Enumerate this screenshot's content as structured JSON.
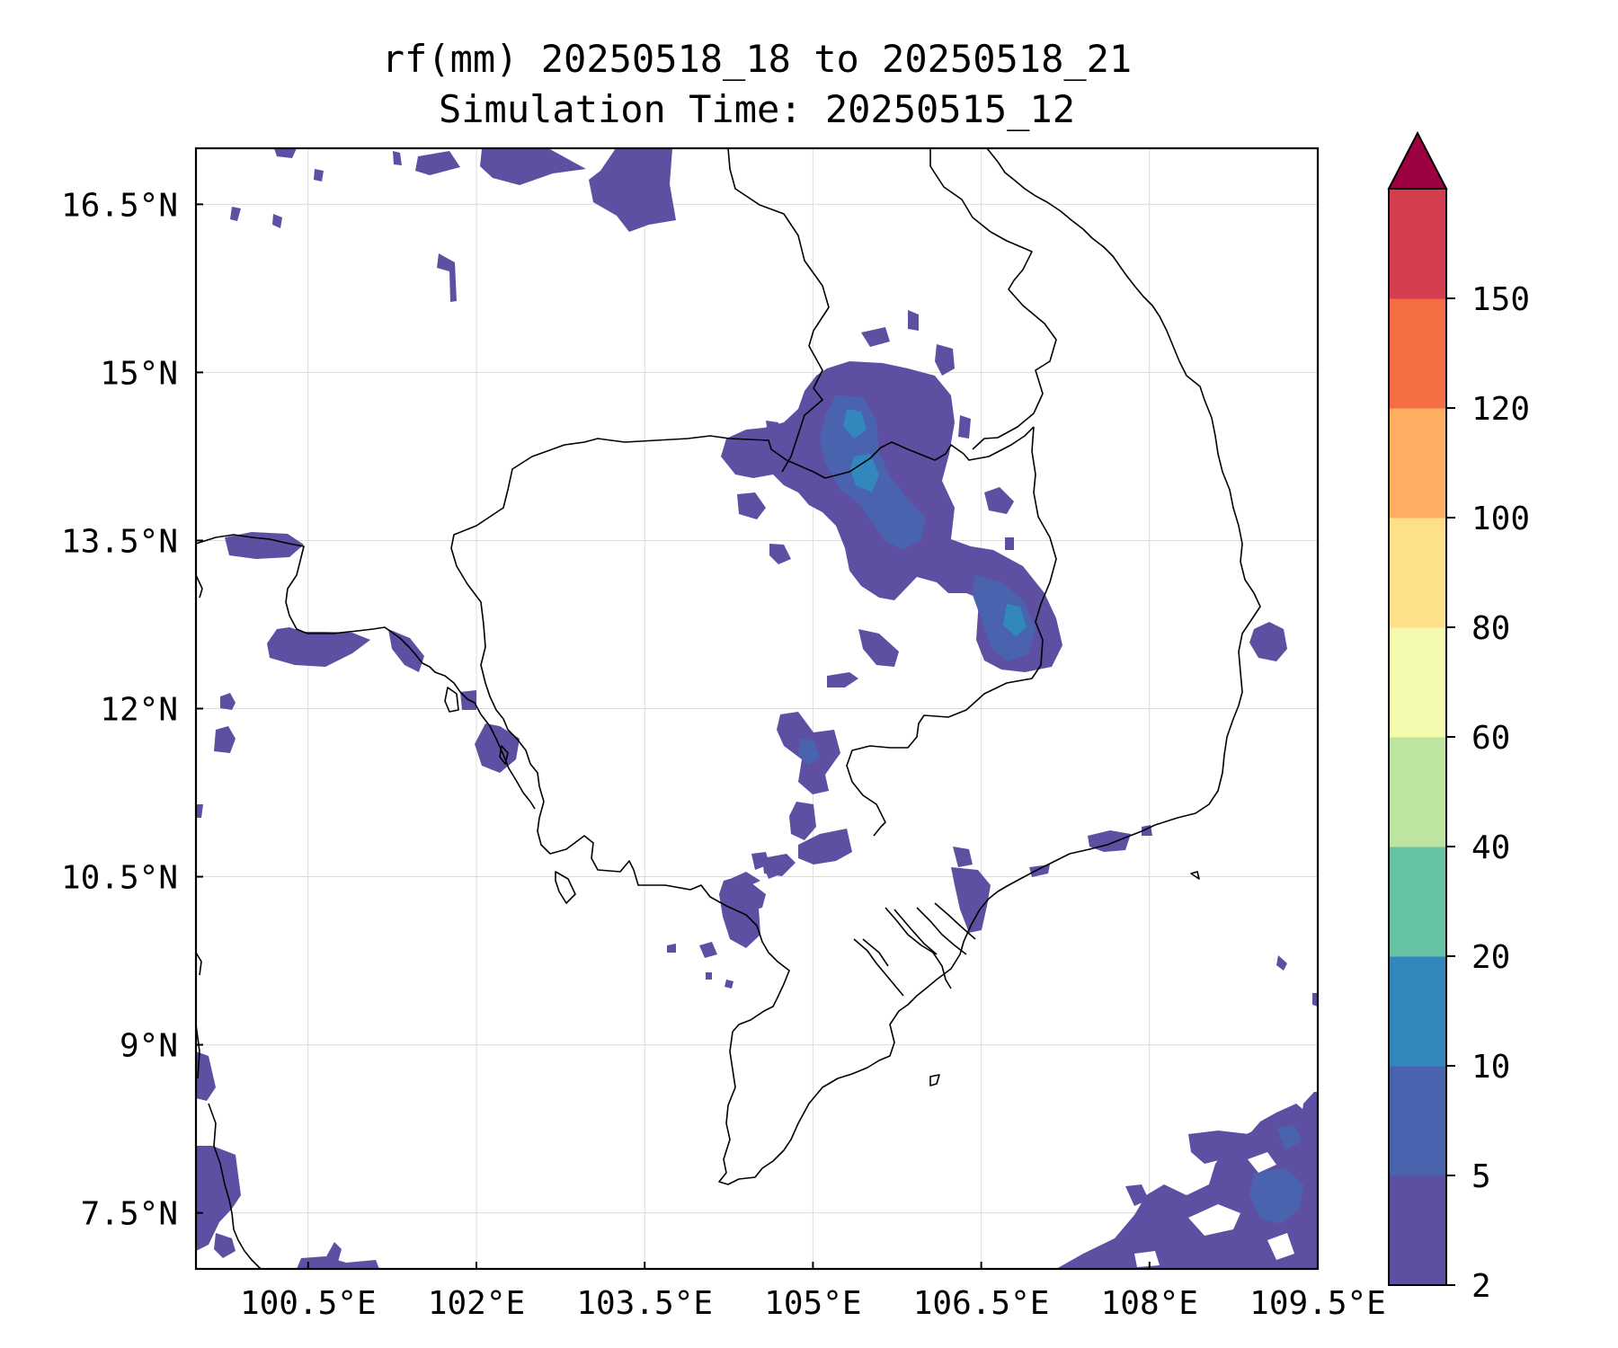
{
  "title": {
    "line1": "rf(mm) 20250518_18 to 20250518_21",
    "line2": "Simulation Time: 20250515_12"
  },
  "map": {
    "lon_range": [
      99.5,
      109.5
    ],
    "lat_range": [
      7.0,
      17.0
    ],
    "x_ticks": [
      {
        "value": 100.5,
        "label": "100.5°E"
      },
      {
        "value": 102.0,
        "label": "102°E"
      },
      {
        "value": 103.5,
        "label": "103.5°E"
      },
      {
        "value": 105.0,
        "label": "105°E"
      },
      {
        "value": 106.5,
        "label": "106.5°E"
      },
      {
        "value": 108.0,
        "label": "108°E"
      },
      {
        "value": 109.5,
        "label": "109.5°E"
      }
    ],
    "y_ticks": [
      {
        "value": 16.5,
        "label": "16.5°N"
      },
      {
        "value": 15.0,
        "label": "15°N"
      },
      {
        "value": 13.5,
        "label": "13.5°N"
      },
      {
        "value": 12.0,
        "label": "12°N"
      },
      {
        "value": 10.5,
        "label": "10.5°N"
      },
      {
        "value": 9.0,
        "label": "9°N"
      },
      {
        "value": 7.5,
        "label": "7.5°N"
      }
    ],
    "grid": true,
    "rain_colors": {
      "c2": "#5e4fa2",
      "c5": "#4a63ae",
      "c10": "#3288bd"
    },
    "border_color": "#000000"
  },
  "colorbar": {
    "levels": [
      2,
      5,
      10,
      20,
      40,
      60,
      80,
      100,
      120,
      150
    ],
    "labels": [
      "2",
      "5",
      "10",
      "20",
      "40",
      "60",
      "80",
      "100",
      "120",
      "150"
    ],
    "colors": [
      "#5e4fa2",
      "#4a63ae",
      "#3288bd",
      "#66c2a5",
      "#bee5a0",
      "#f3faad",
      "#fee08b",
      "#fdae61",
      "#f46d43",
      "#d53e4f"
    ],
    "extend_color": "#9e0142",
    "extend": "max"
  }
}
